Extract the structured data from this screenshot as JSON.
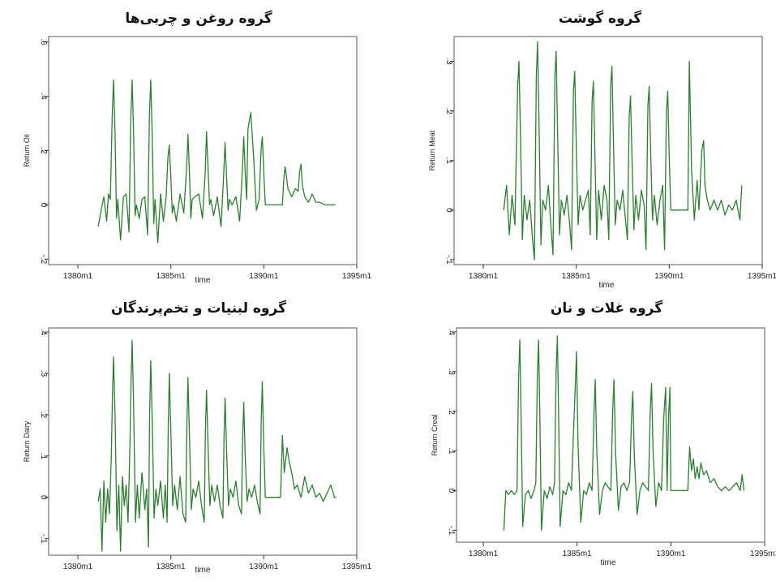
{
  "chart_data": [
    {
      "type": "line",
      "title": "گروه روغن و چربی‌ها",
      "xlabel": "time",
      "ylabel": "Return Oil",
      "xlim": [
        1380,
        1395
      ],
      "ylim": [
        -0.22,
        0.62
      ],
      "xticks": [
        "1380m1",
        "1385m1",
        "1390m1",
        "1395m1"
      ],
      "yticks": [
        -0.2,
        0,
        0.2,
        0.4,
        0.6
      ],
      "ytick_labels": [
        "-.2",
        "0",
        ".2",
        ".4",
        ".6"
      ],
      "grid": false,
      "color": "#2e7d32",
      "series": [
        {
          "x": [
            1381.1,
            1381.25,
            1381.4,
            1381.55,
            1381.65,
            1381.75,
            1381.85,
            1381.92,
            1382.0,
            1382.08,
            1382.15,
            1382.3,
            1382.45,
            1382.6,
            1382.75,
            1382.85,
            1382.92,
            1383.0,
            1383.08,
            1383.15,
            1383.3,
            1383.45,
            1383.6,
            1383.75,
            1383.85,
            1383.92,
            1384.0,
            1384.08,
            1384.15,
            1384.3,
            1384.45,
            1384.6,
            1384.75,
            1384.85,
            1384.92,
            1385.0,
            1385.08,
            1385.15,
            1385.3,
            1385.5,
            1385.7,
            1385.85,
            1385.92,
            1386.0,
            1386.08,
            1386.15,
            1386.3,
            1386.5,
            1386.7,
            1386.85,
            1386.92,
            1387.0,
            1387.08,
            1387.15,
            1387.3,
            1387.5,
            1387.7,
            1387.85,
            1387.92,
            1388.0,
            1388.08,
            1388.15,
            1388.3,
            1388.5,
            1388.7,
            1388.85,
            1388.92,
            1389.0,
            1389.08,
            1389.15,
            1389.3,
            1389.45,
            1389.6,
            1389.75,
            1389.85,
            1389.92,
            1390.0,
            1390.08,
            1390.15,
            1391.0,
            1391.08,
            1391.15,
            1391.3,
            1391.5,
            1391.7,
            1391.85,
            1391.92,
            1392.0,
            1392.08,
            1392.2,
            1392.4,
            1392.6,
            1392.8,
            1393.0,
            1393.3,
            1393.6,
            1393.85
          ],
          "y": [
            -0.08,
            -0.02,
            0.03,
            -0.06,
            0.04,
            0.02,
            0.33,
            0.46,
            0.26,
            -0.05,
            0.02,
            -0.13,
            0.03,
            0.04,
            -0.1,
            0.33,
            0.46,
            0.26,
            -0.04,
            0.0,
            -0.05,
            0.02,
            0.03,
            -0.11,
            0.33,
            0.46,
            0.26,
            -0.07,
            0.02,
            -0.14,
            0.04,
            -0.06,
            0.03,
            0.18,
            0.22,
            0.1,
            -0.03,
            0.0,
            -0.06,
            0.04,
            -0.03,
            0.14,
            0.26,
            0.12,
            -0.05,
            0.02,
            0.03,
            0.04,
            -0.05,
            0.12,
            0.27,
            0.14,
            0.0,
            0.02,
            -0.04,
            0.03,
            -0.08,
            0.12,
            0.23,
            0.1,
            -0.02,
            0.02,
            0.0,
            0.03,
            -0.06,
            0.13,
            0.25,
            0.12,
            0.02,
            0.28,
            0.34,
            0.18,
            -0.02,
            0.02,
            0.2,
            0.25,
            0.12,
            0.0,
            0.0,
            0.0,
            0.1,
            0.14,
            0.06,
            0.03,
            0.06,
            0.05,
            0.12,
            0.15,
            0.07,
            0.03,
            0.01,
            0.04,
            0.01,
            0.01,
            0.0,
            0.0,
            0.0
          ]
        }
      ]
    },
    {
      "type": "line",
      "title": "گروه گوشت",
      "xlabel": "time",
      "ylabel": "Return Meat",
      "xlim": [
        1380,
        1395
      ],
      "ylim": [
        -0.11,
        0.35
      ],
      "xticks": [
        "1380m1",
        "1385m1",
        "1390m1",
        "1395m1"
      ],
      "yticks": [
        -0.1,
        0,
        0.1,
        0.2,
        0.3
      ],
      "ytick_labels": [
        "-.1",
        "0",
        ".1",
        ".2",
        ".3"
      ],
      "grid": false,
      "color": "#2e7d32",
      "series": [
        {
          "x": [
            1381.1,
            1381.25,
            1381.4,
            1381.55,
            1381.7,
            1381.85,
            1381.92,
            1382.0,
            1382.1,
            1382.2,
            1382.35,
            1382.5,
            1382.65,
            1382.75,
            1382.85,
            1382.92,
            1383.0,
            1383.1,
            1383.2,
            1383.35,
            1383.5,
            1383.65,
            1383.75,
            1383.85,
            1383.92,
            1384.0,
            1384.1,
            1384.2,
            1384.35,
            1384.5,
            1384.65,
            1384.75,
            1384.85,
            1384.92,
            1385.0,
            1385.1,
            1385.2,
            1385.35,
            1385.5,
            1385.65,
            1385.75,
            1385.85,
            1385.92,
            1386.0,
            1386.1,
            1386.2,
            1386.35,
            1386.5,
            1386.65,
            1386.75,
            1386.85,
            1386.92,
            1387.0,
            1387.1,
            1387.2,
            1387.35,
            1387.5,
            1387.65,
            1387.75,
            1387.85,
            1387.92,
            1388.0,
            1388.1,
            1388.2,
            1388.35,
            1388.5,
            1388.65,
            1388.75,
            1388.85,
            1388.92,
            1389.0,
            1389.1,
            1389.2,
            1389.35,
            1389.5,
            1389.65,
            1389.75,
            1389.85,
            1389.92,
            1390.0,
            1390.08,
            1391.0,
            1391.08,
            1391.2,
            1391.35,
            1391.5,
            1391.6,
            1391.75,
            1391.85,
            1391.92,
            1392.05,
            1392.2,
            1392.4,
            1392.6,
            1392.8,
            1393.0,
            1393.2,
            1393.4,
            1393.6,
            1393.8,
            1393.9
          ],
          "y": [
            0.0,
            0.05,
            -0.05,
            0.03,
            -0.03,
            0.25,
            0.3,
            0.15,
            -0.06,
            0.03,
            -0.02,
            0.02,
            -0.06,
            -0.1,
            0.27,
            0.34,
            0.17,
            -0.07,
            0.02,
            0.0,
            0.05,
            -0.04,
            -0.09,
            0.27,
            0.32,
            0.15,
            -0.05,
            0.02,
            -0.01,
            0.03,
            -0.03,
            -0.08,
            0.24,
            0.28,
            0.13,
            -0.03,
            0.03,
            0.0,
            0.02,
            0.04,
            -0.05,
            0.22,
            0.26,
            0.12,
            -0.06,
            0.04,
            -0.02,
            0.05,
            0.02,
            -0.06,
            0.25,
            0.29,
            0.14,
            -0.03,
            0.02,
            0.0,
            0.04,
            -0.02,
            -0.06,
            0.19,
            0.23,
            0.1,
            -0.04,
            0.03,
            -0.02,
            0.04,
            0.01,
            -0.08,
            0.21,
            0.25,
            0.12,
            -0.02,
            0.03,
            -0.03,
            0.02,
            0.05,
            -0.08,
            0.2,
            0.24,
            0.11,
            0.0,
            0.0,
            0.3,
            0.08,
            -0.02,
            0.06,
            0.0,
            0.12,
            0.14,
            0.05,
            0.02,
            0.0,
            0.02,
            0.0,
            0.02,
            -0.01,
            0.01,
            0.0,
            0.02,
            -0.02,
            0.05
          ]
        }
      ]
    },
    {
      "type": "line",
      "title": "گروه لبنیات و تخم‌پرندگان",
      "xlabel": "time",
      "ylabel": "Return Dairy",
      "xlim": [
        1380,
        1395
      ],
      "ylim": [
        -0.14,
        0.41
      ],
      "xticks": [
        "1380m1",
        "1385m1",
        "1390m1",
        "1395m1"
      ],
      "yticks": [
        -0.1,
        0,
        0.1,
        0.2,
        0.3,
        0.4
      ],
      "ytick_labels": [
        "-.1",
        "0",
        ".1",
        ".2",
        ".3",
        ".4"
      ],
      "grid": false,
      "color": "#2e7d32",
      "series": [
        {
          "x": [
            1381.1,
            1381.2,
            1381.3,
            1381.4,
            1381.5,
            1381.6,
            1381.7,
            1381.8,
            1381.86,
            1381.92,
            1382.0,
            1382.1,
            1382.2,
            1382.3,
            1382.4,
            1382.5,
            1382.6,
            1382.7,
            1382.8,
            1382.86,
            1382.92,
            1383.0,
            1383.1,
            1383.2,
            1383.3,
            1383.45,
            1383.6,
            1383.7,
            1383.8,
            1383.86,
            1383.92,
            1384.0,
            1384.1,
            1384.2,
            1384.3,
            1384.45,
            1384.6,
            1384.7,
            1384.8,
            1384.86,
            1384.92,
            1385.0,
            1385.1,
            1385.2,
            1385.35,
            1385.5,
            1385.65,
            1385.8,
            1385.86,
            1385.92,
            1386.0,
            1386.1,
            1386.2,
            1386.35,
            1386.5,
            1386.65,
            1386.8,
            1386.86,
            1386.92,
            1387.0,
            1387.1,
            1387.2,
            1387.35,
            1387.5,
            1387.65,
            1387.8,
            1387.86,
            1387.92,
            1388.0,
            1388.1,
            1388.2,
            1388.35,
            1388.5,
            1388.65,
            1388.8,
            1388.86,
            1388.92,
            1389.0,
            1389.1,
            1389.2,
            1389.35,
            1389.5,
            1389.65,
            1389.8,
            1389.86,
            1389.92,
            1390.0,
            1390.08,
            1390.9,
            1391.0,
            1391.1,
            1391.25,
            1391.35,
            1391.5,
            1391.65,
            1391.8,
            1392.0,
            1392.2,
            1392.4,
            1392.6,
            1392.8,
            1393.0,
            1393.2,
            1393.4,
            1393.6,
            1393.8,
            1393.9
          ],
          "y": [
            -0.01,
            0.02,
            -0.13,
            0.04,
            -0.06,
            0.02,
            -0.04,
            0.1,
            0.25,
            0.34,
            0.2,
            -0.08,
            0.03,
            -0.13,
            0.05,
            -0.02,
            0.03,
            -0.06,
            0.12,
            0.28,
            0.38,
            0.22,
            -0.06,
            0.03,
            -0.05,
            0.06,
            -0.03,
            0.02,
            -0.12,
            0.2,
            0.33,
            0.19,
            -0.05,
            0.02,
            -0.02,
            0.04,
            -0.05,
            0.03,
            -0.06,
            0.17,
            0.3,
            0.16,
            -0.02,
            0.03,
            -0.03,
            0.05,
            -0.04,
            -0.06,
            0.17,
            0.29,
            0.15,
            -0.03,
            0.02,
            0.0,
            0.04,
            -0.02,
            -0.06,
            0.16,
            0.26,
            0.13,
            -0.02,
            0.03,
            -0.01,
            0.03,
            -0.02,
            -0.05,
            0.15,
            0.24,
            0.11,
            -0.02,
            0.02,
            0.0,
            0.04,
            -0.02,
            -0.04,
            0.14,
            0.23,
            0.1,
            -0.01,
            0.02,
            0.0,
            0.03,
            -0.01,
            -0.04,
            0.18,
            0.28,
            0.12,
            0.0,
            0.0,
            0.15,
            0.06,
            0.12,
            0.09,
            0.06,
            0.02,
            0.03,
            0.0,
            0.05,
            0.01,
            0.03,
            0.0,
            0.01,
            -0.01,
            0.01,
            0.03,
            0.0,
            0.0
          ]
        }
      ]
    },
    {
      "type": "line",
      "title": "گروه غلات و نان",
      "xlabel": "time",
      "ylabel": "Return Creal",
      "xlim": [
        1380,
        1395
      ],
      "ylim": [
        -0.13,
        0.41
      ],
      "xticks": [
        "1380m1",
        "1385m1",
        "1390m1",
        "1395m1"
      ],
      "yticks": [
        -0.1,
        0,
        0.1,
        0.2,
        0.3,
        0.4
      ],
      "ytick_labels": [
        "-.1",
        "0",
        ".1",
        ".2",
        ".3",
        ".4"
      ],
      "grid": false,
      "color": "#2e7d32",
      "series": [
        {
          "x": [
            1381.1,
            1381.2,
            1381.35,
            1381.5,
            1381.65,
            1381.8,
            1381.88,
            1381.95,
            1382.02,
            1382.1,
            1382.25,
            1382.4,
            1382.55,
            1382.7,
            1382.8,
            1382.88,
            1382.95,
            1383.02,
            1383.1,
            1383.25,
            1383.4,
            1383.55,
            1383.7,
            1383.8,
            1383.88,
            1383.95,
            1384.02,
            1384.1,
            1384.25,
            1384.4,
            1384.55,
            1384.7,
            1384.82,
            1384.9,
            1384.97,
            1385.05,
            1385.2,
            1385.35,
            1385.5,
            1385.65,
            1385.8,
            1385.9,
            1385.97,
            1386.05,
            1386.2,
            1386.35,
            1386.5,
            1386.65,
            1386.8,
            1386.9,
            1386.97,
            1387.05,
            1387.2,
            1387.35,
            1387.5,
            1387.65,
            1387.8,
            1387.9,
            1387.97,
            1388.05,
            1388.2,
            1388.35,
            1388.5,
            1388.65,
            1388.8,
            1388.9,
            1388.97,
            1389.05,
            1389.2,
            1389.35,
            1389.5,
            1389.62,
            1389.72,
            1389.8,
            1389.88,
            1389.95,
            1390.0,
            1390.08,
            1390.9,
            1391.0,
            1391.1,
            1391.2,
            1391.3,
            1391.4,
            1391.5,
            1391.6,
            1391.75,
            1391.9,
            1392.1,
            1392.3,
            1392.5,
            1392.7,
            1392.9,
            1393.1,
            1393.3,
            1393.5,
            1393.7,
            1393.8,
            1393.9
          ],
          "y": [
            -0.1,
            0.0,
            -0.01,
            0.0,
            -0.01,
            0.0,
            0.28,
            0.38,
            0.18,
            -0.09,
            -0.01,
            0.0,
            -0.02,
            0.0,
            0.02,
            0.28,
            0.38,
            0.17,
            -0.1,
            0.0,
            -0.02,
            0.01,
            -0.01,
            0.02,
            0.3,
            0.39,
            0.18,
            -0.09,
            0.0,
            -0.01,
            0.02,
            0.0,
            0.16,
            0.26,
            0.35,
            0.12,
            -0.08,
            0.0,
            -0.01,
            0.02,
            0.0,
            0.19,
            0.28,
            0.1,
            -0.06,
            0.0,
            0.02,
            0.01,
            0.0,
            0.2,
            0.28,
            0.1,
            -0.05,
            0.01,
            0.02,
            0.0,
            0.02,
            0.18,
            0.25,
            0.09,
            -0.06,
            0.0,
            0.02,
            0.01,
            0.0,
            0.2,
            0.27,
            0.1,
            -0.04,
            0.02,
            0.0,
            0.18,
            0.26,
            0.0,
            0.19,
            0.26,
            0.0,
            0.0,
            0.0,
            0.11,
            0.05,
            0.08,
            0.03,
            0.06,
            0.03,
            0.07,
            0.04,
            0.05,
            0.02,
            0.03,
            0.01,
            0.0,
            0.01,
            0.0,
            0.01,
            0.02,
            0.0,
            0.04,
            0.0
          ]
        }
      ]
    }
  ]
}
